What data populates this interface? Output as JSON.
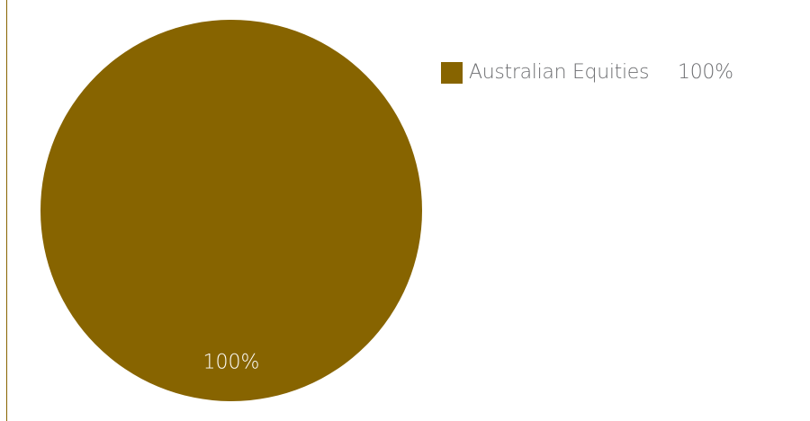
{
  "chart_data": {
    "type": "pie",
    "title": "",
    "slices": [
      {
        "name": "Australian Equities",
        "value": 100,
        "label": "100%",
        "color": "#876400"
      }
    ],
    "legend": {
      "placement": "top-right",
      "entries": [
        {
          "name": "Australian Equities",
          "value_label": "100%"
        }
      ]
    }
  },
  "colors": {
    "frame_rule": "#876400",
    "text": "#6d6e71",
    "slice_label": "#ffffff"
  }
}
